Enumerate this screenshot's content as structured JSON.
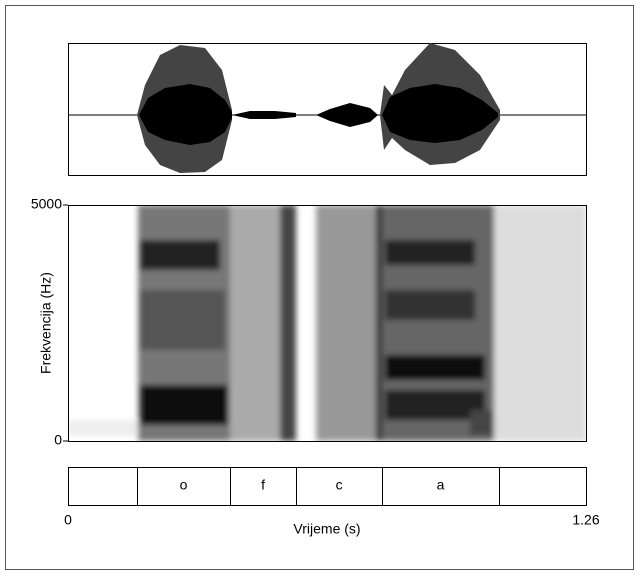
{
  "chart_data": {
    "type": "spectrogram",
    "xlabel": "Vrijeme (s)",
    "ylabel": "Frekvencija (Hz)",
    "xlim": [
      0,
      1.26
    ],
    "xticks": [
      0,
      1.26
    ],
    "ylim": [
      0,
      5000
    ],
    "yticks": [
      0,
      5000
    ],
    "tier": {
      "boundaries": [
        0.168,
        0.394,
        0.555,
        0.764,
        1.048
      ],
      "labels": [
        null,
        "o",
        "f",
        "c",
        "a",
        null
      ]
    }
  }
}
